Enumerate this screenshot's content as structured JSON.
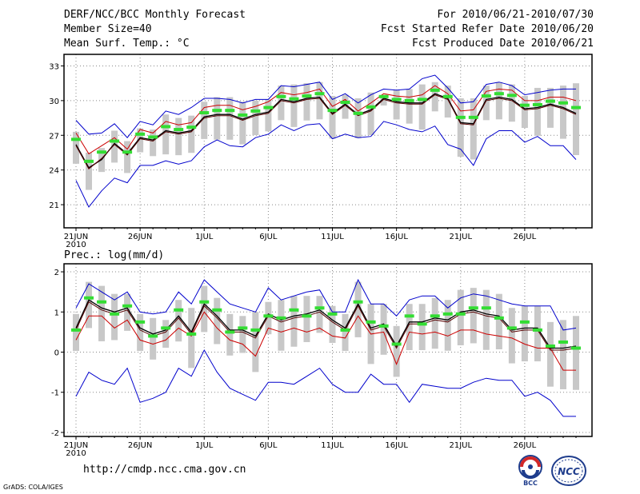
{
  "header": {
    "title": "DERF/NCC/BCC Monthly Forecast",
    "member_size": "Member Size=40",
    "variable": "Mean Surf. Temp.: °C",
    "period": "For 2010/06/21-2010/07/30",
    "start_date": "Fcst Started Refer Date 2010/06/20",
    "produced_date": "Fcst Produced Date 2010/06/21"
  },
  "footer": {
    "url": "http://cmdp.ncc.cma.gov.cn",
    "grads": "GrADS: COLA/IGES",
    "logo1_text": "BCC",
    "logo2_text": "NCC"
  },
  "colors": {
    "ensemble_mean": "#000000",
    "upper_lower_envelope": "#0000cc",
    "median_line": "#cc0000",
    "box": "#c8c8c8",
    "marker": "#33dd33"
  },
  "chart_data": [
    {
      "type": "line",
      "title": "Mean Surf. Temp.: °C",
      "xlabel": "",
      "ylabel": "",
      "x_tick_labels": [
        "21JUN",
        "26JUN",
        "1JUL",
        "6JUL",
        "11JUL",
        "16JUL",
        "21JUL",
        "26JUL"
      ],
      "x_sublabel": "2010",
      "ylim": [
        19,
        34
      ],
      "yticks": [
        21,
        24,
        27,
        30,
        33
      ],
      "grid": true,
      "series": [
        {
          "name": "max",
          "color": "#0000cc",
          "values": [
            28.3,
            27.1,
            27.2,
            28,
            26.8,
            28.2,
            27.9,
            29.1,
            28.8,
            29.4,
            30.2,
            30.2,
            30.1,
            29.8,
            30.1,
            30.1,
            31.3,
            31.2,
            31.4,
            31.6,
            30.1,
            30.6,
            29.8,
            30.5,
            31,
            30.9,
            31,
            31.9,
            32.2,
            31.1,
            29.8,
            29.9,
            31.4,
            31.6,
            31.3,
            30.5,
            30.7,
            30.9,
            31,
            31
          ]
        },
        {
          "name": "upper",
          "color": "#cc0000",
          "values": [
            27.2,
            25.4,
            26.1,
            26.8,
            25.8,
            27.5,
            27.2,
            28.2,
            27.9,
            28.1,
            29.4,
            29.6,
            29.6,
            29.2,
            29.5,
            29.9,
            30.7,
            30.5,
            30.7,
            31,
            29.5,
            30.1,
            29.1,
            29.8,
            30.6,
            30.4,
            30.3,
            30.5,
            31.3,
            30.6,
            29.1,
            29.2,
            30.8,
            31,
            30.9,
            30,
            30,
            30.3,
            30.3,
            30
          ]
        },
        {
          "name": "mean",
          "color": "#000000",
          "values": [
            26.2,
            24.2,
            24.9,
            26.3,
            25.4,
            26.8,
            26.6,
            27.4,
            27.2,
            27.4,
            28.6,
            28.8,
            28.8,
            28.4,
            28.8,
            29,
            30.1,
            29.9,
            30.2,
            30.3,
            28.9,
            29.7,
            28.8,
            29.2,
            30.2,
            29.9,
            29.8,
            29.8,
            30.6,
            30.2,
            28.1,
            28,
            30.1,
            30.3,
            30.1,
            29.3,
            29.4,
            29.7,
            29.4,
            28.9
          ]
        },
        {
          "name": "median",
          "color": "#550000",
          "values": [
            26.1,
            24.1,
            25,
            26.2,
            25.3,
            26.7,
            26.5,
            27.3,
            27.1,
            27.3,
            28.5,
            28.7,
            28.7,
            28.3,
            28.7,
            28.9,
            30,
            29.8,
            30.1,
            30.2,
            28.8,
            29.6,
            28.7,
            29.1,
            30.1,
            29.8,
            29.7,
            29.7,
            30.5,
            30.1,
            28,
            27.9,
            30,
            30.2,
            30,
            29.2,
            29.3,
            29.6,
            29.3,
            28.8
          ]
        },
        {
          "name": "min",
          "color": "#0000cc",
          "values": [
            23.1,
            20.8,
            22.2,
            23.3,
            22.9,
            24.4,
            24.4,
            24.8,
            24.5,
            24.8,
            26,
            26.6,
            26.1,
            26,
            26.8,
            27.1,
            27.9,
            27.4,
            27.9,
            28,
            26.7,
            27.1,
            26.8,
            26.9,
            28.2,
            27.9,
            27.5,
            27.3,
            27.8,
            26.2,
            25.8,
            24.4,
            26.7,
            27.4,
            27.4,
            26.4,
            26.9,
            26.1,
            26.1,
            24.9
          ]
        }
      ],
      "boxes": {
        "upper": [
          27.3,
          25.5,
          25.9,
          27.4,
          26.5,
          27.6,
          27.5,
          28.8,
          28.5,
          28.7,
          29.9,
          30.3,
          30.3,
          29.9,
          30,
          30.1,
          31.3,
          31.4,
          31.5,
          31.6,
          30.4,
          30.5,
          30.2,
          30.7,
          30.5,
          30.9,
          31,
          31.4,
          31.6,
          31.3,
          30.2,
          30.2,
          31.3,
          31.6,
          31.4,
          30.4,
          31.1,
          31.1,
          31.3,
          31.5
        ]
      }
    },
    {
      "type": "line",
      "title": "Prec.: log(mm/d)",
      "xlabel": "",
      "ylabel": "",
      "x_tick_labels": [
        "21JUN",
        "26JUN",
        "1JUL",
        "6JUL",
        "11JUL",
        "16JUL",
        "21JUL",
        "26JUL"
      ],
      "x_sublabel": "2010",
      "ylim": [
        -2.1,
        2.2
      ],
      "yticks": [
        -2,
        -1,
        0,
        1,
        2
      ],
      "grid": true,
      "series": [
        {
          "name": "max",
          "color": "#0000cc",
          "values": [
            1.1,
            1.7,
            1.5,
            1.3,
            1.5,
            1,
            0.95,
            1,
            1.5,
            1.2,
            1.8,
            1.5,
            1.2,
            1.1,
            1,
            1.6,
            1.3,
            1.4,
            1.5,
            1.55,
            1,
            1,
            1.8,
            1.2,
            1.2,
            0.9,
            1.3,
            1.4,
            1.4,
            1.1,
            1.35,
            1.45,
            1.4,
            1.3,
            1.2,
            1.15,
            1.15,
            1.15,
            0.55,
            0.6
          ]
        },
        {
          "name": "upper",
          "color": "#cc0000",
          "values": [
            0.3,
            0.9,
            0.9,
            0.6,
            0.8,
            0.3,
            0.2,
            0.3,
            0.6,
            0.4,
            1,
            0.6,
            0.3,
            0.2,
            -0.1,
            0.6,
            0.5,
            0.6,
            0.5,
            0.6,
            0.4,
            0.35,
            0.9,
            0.45,
            0.5,
            -0.3,
            0.5,
            0.45,
            0.5,
            0.4,
            0.55,
            0.55,
            0.45,
            0.4,
            0.35,
            0.2,
            0.1,
            0.1,
            -0.45,
            -0.45
          ]
        },
        {
          "name": "mean",
          "color": "#000000",
          "values": [
            0.6,
            1.3,
            1.1,
            1,
            1.1,
            0.6,
            0.45,
            0.55,
            0.9,
            0.5,
            1.2,
            0.9,
            0.55,
            0.55,
            0.4,
            0.95,
            0.8,
            0.9,
            0.95,
            1.05,
            0.8,
            0.6,
            1.2,
            0.6,
            0.7,
            0.15,
            0.75,
            0.75,
            0.85,
            0.8,
            1,
            1.05,
            0.95,
            0.9,
            0.55,
            0.6,
            0.6,
            0.1,
            0.1,
            0.15
          ]
        },
        {
          "name": "median",
          "color": "#550000",
          "values": [
            0.55,
            1.25,
            1.05,
            0.95,
            1.05,
            0.55,
            0.4,
            0.5,
            0.85,
            0.45,
            1.15,
            0.85,
            0.5,
            0.5,
            0.35,
            0.9,
            0.75,
            0.85,
            0.9,
            1,
            0.75,
            0.55,
            1.15,
            0.55,
            0.65,
            0.1,
            0.7,
            0.7,
            0.8,
            0.75,
            0.95,
            1,
            0.9,
            0.85,
            0.5,
            0.55,
            0.55,
            0.05,
            0.05,
            0.1
          ]
        },
        {
          "name": "min",
          "color": "#0000cc",
          "values": [
            -1.1,
            -0.5,
            -0.7,
            -0.8,
            -0.4,
            -1.25,
            -1.15,
            -1,
            -0.4,
            -0.6,
            0.05,
            -0.5,
            -0.9,
            -1.05,
            -1.2,
            -0.75,
            -0.75,
            -0.8,
            -0.6,
            -0.4,
            -0.8,
            -1,
            -1,
            -0.55,
            -0.8,
            -0.8,
            -1.25,
            -0.8,
            -0.85,
            -0.9,
            -0.9,
            -0.75,
            -0.65,
            -0.7,
            -0.7,
            -1.1,
            -1,
            -1.2,
            -1.6,
            -1.6
          ]
        }
      ],
      "boxes": {
        "upper": [
          0.95,
          1.75,
          1.65,
          1.45,
          1.45,
          0.95,
          0.85,
          0.8,
          1.3,
          1.1,
          1.65,
          1.35,
          0.95,
          0.9,
          1,
          1.25,
          1.3,
          1.4,
          1.4,
          1.4,
          1.15,
          0.95,
          1.75,
          1.2,
          1.2,
          0.65,
          1.2,
          1.2,
          1.35,
          1.3,
          1.55,
          1.6,
          1.55,
          1.45,
          1.1,
          1.15,
          1.15,
          0.75,
          0.8,
          0.9
        ]
      }
    }
  ]
}
